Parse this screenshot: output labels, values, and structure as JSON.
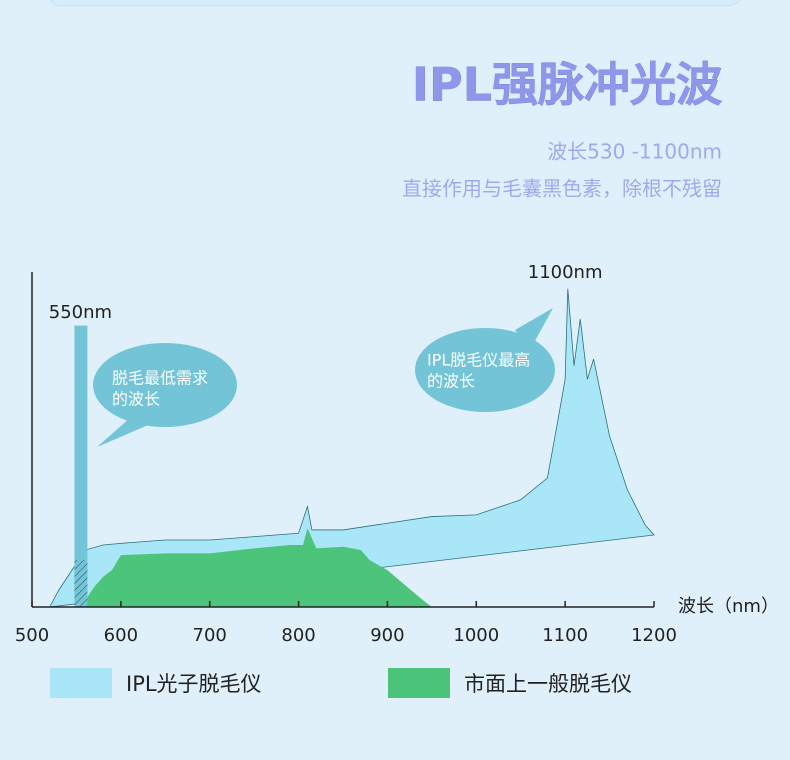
{
  "header": {
    "title": "IPL强脉冲光波",
    "subtitle": [
      "波长530 -1100nm",
      "直接作用与毛囊黑色素，除根不残留"
    ]
  },
  "chart_data": {
    "type": "area",
    "xlim": [
      500,
      1200
    ],
    "xticks": [
      500,
      600,
      700,
      800,
      900,
      1000,
      1100,
      1200
    ],
    "ylim": [
      0,
      100
    ],
    "x_label": "波长（nm）",
    "series": [
      {
        "name": "IPL光子脱毛仪",
        "color": "#a9e7f8",
        "x": [
          520,
          530,
          545,
          560,
          580,
          600,
          650,
          700,
          750,
          800,
          810,
          815,
          850,
          900,
          950,
          1000,
          1050,
          1080,
          1090,
          1100,
          1103,
          1110,
          1117,
          1125,
          1132,
          1150,
          1170,
          1190,
          1200
        ],
        "values": [
          0,
          5,
          11,
          17,
          18.5,
          19,
          20,
          20,
          21,
          22,
          30,
          23,
          23,
          25,
          27,
          27.5,
          32,
          38.5,
          53,
          68,
          95,
          72,
          86,
          68,
          74,
          51,
          35,
          24.5,
          21.5
        ]
      },
      {
        "name": "市面上一般脱毛仪",
        "color": "#4cc47a",
        "x": [
          555,
          570,
          580,
          590,
          600,
          650,
          700,
          750,
          790,
          805,
          810,
          820,
          850,
          870,
          880,
          900,
          920,
          940,
          950
        ],
        "values": [
          0,
          6,
          9,
          11,
          15.5,
          16,
          16,
          17.5,
          18.5,
          18.5,
          23.5,
          17.5,
          18,
          17,
          14,
          11,
          6.5,
          2,
          0
        ]
      }
    ],
    "marker": {
      "x": 550,
      "height": 84,
      "label": "550nm",
      "color": "#72c4d6"
    },
    "peak": {
      "x": 1100,
      "label": "1100nm"
    },
    "annotations": [
      [
        "脱毛最低需求",
        "的波长"
      ],
      [
        "IPL脱毛仪最高",
        "的波长"
      ]
    ]
  }
}
